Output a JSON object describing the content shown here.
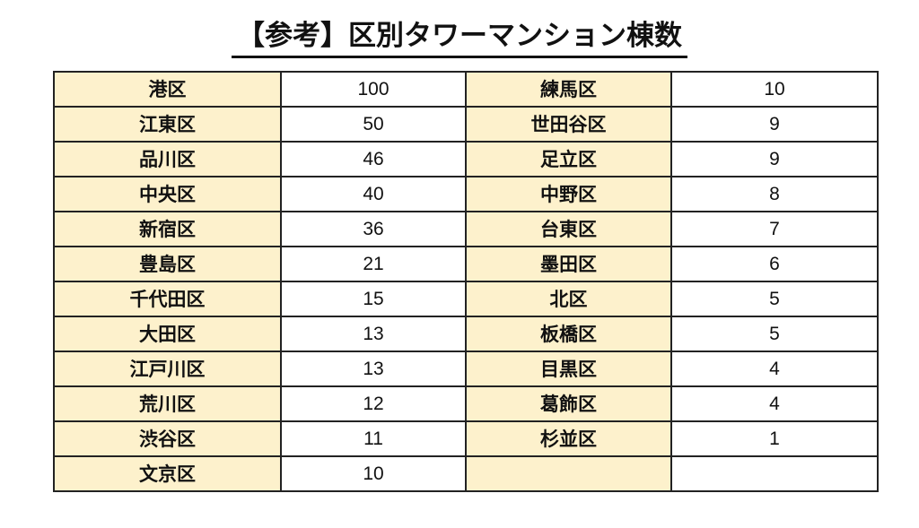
{
  "title": "【参考】区別タワーマンション棟数",
  "rows": [
    {
      "left_name": "港区",
      "left_count": "100",
      "right_name": "練馬区",
      "right_count": "10"
    },
    {
      "left_name": "江東区",
      "left_count": "50",
      "right_name": "世田谷区",
      "right_count": "9"
    },
    {
      "left_name": "品川区",
      "left_count": "46",
      "right_name": "足立区",
      "right_count": "9"
    },
    {
      "left_name": "中央区",
      "left_count": "40",
      "right_name": "中野区",
      "right_count": "8"
    },
    {
      "left_name": "新宿区",
      "left_count": "36",
      "right_name": "台東区",
      "right_count": "7"
    },
    {
      "left_name": "豊島区",
      "left_count": "21",
      "right_name": "墨田区",
      "right_count": "6"
    },
    {
      "left_name": "千代田区",
      "left_count": "15",
      "right_name": "北区",
      "right_count": "5"
    },
    {
      "left_name": "大田区",
      "left_count": "13",
      "right_name": "板橋区",
      "right_count": "5"
    },
    {
      "left_name": "江戸川区",
      "left_count": "13",
      "right_name": "目黒区",
      "right_count": "4"
    },
    {
      "left_name": "荒川区",
      "left_count": "12",
      "right_name": "葛飾区",
      "right_count": "4"
    },
    {
      "left_name": "渋谷区",
      "left_count": "11",
      "right_name": "杉並区",
      "right_count": "1"
    },
    {
      "left_name": "文京区",
      "left_count": "10",
      "right_name": "",
      "right_count": ""
    }
  ],
  "colors": {
    "name_cell_bg": "#fdf1cc",
    "border": "#222222"
  }
}
